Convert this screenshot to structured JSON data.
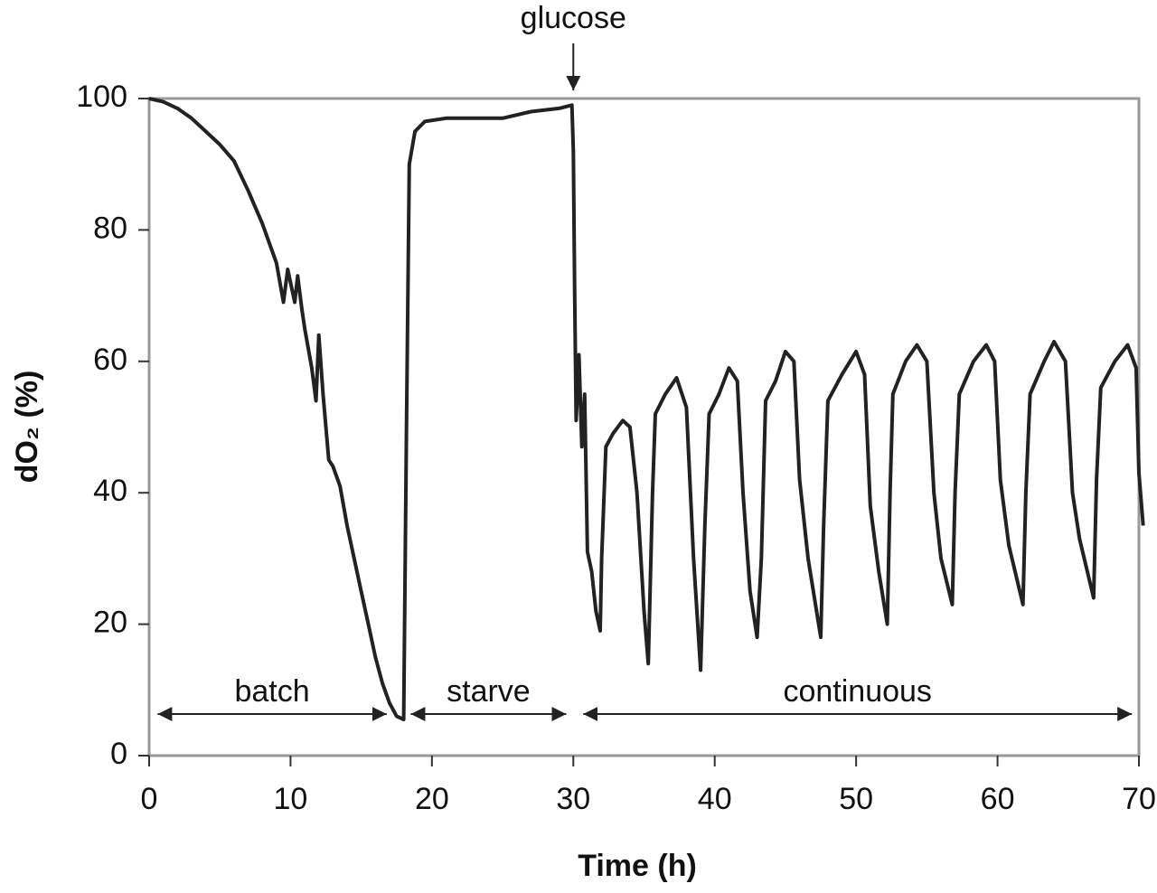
{
  "chart_data": {
    "type": "line",
    "x_label": "Time (h)",
    "y_label": "dO₂ (%)",
    "color": "#222222",
    "xlim": [
      0,
      70
    ],
    "ylim": [
      0,
      100
    ],
    "xticks": [
      0,
      10,
      20,
      30,
      40,
      50,
      60,
      70
    ],
    "yticks": [
      0,
      20,
      40,
      60,
      80,
      100
    ],
    "x": [
      0,
      1,
      2,
      3,
      4,
      5,
      6,
      7,
      8,
      9,
      9.5,
      9.8,
      10,
      10.3,
      10.5,
      10.8,
      11,
      11.5,
      11.8,
      12,
      12.3,
      12.7,
      13,
      13.5,
      14,
      14.5,
      15,
      15.5,
      16,
      16.5,
      17,
      17.5,
      18,
      18.2,
      18.4,
      18.8,
      19.5,
      21,
      23,
      25,
      27,
      29,
      29.9,
      30,
      30.1,
      30.2,
      30.4,
      30.6,
      30.8,
      31,
      31.3,
      31.6,
      31.9,
      32,
      32.3,
      32.8,
      33.5,
      34,
      34.5,
      35,
      35.3,
      35.6,
      35.8,
      36.5,
      37.3,
      38,
      38.5,
      38.8,
      39,
      39.3,
      39.6,
      40.3,
      41,
      41.6,
      42,
      42.5,
      43,
      43.3,
      43.6,
      44.3,
      45,
      45.6,
      46,
      46.6,
      47.5,
      47.7,
      48,
      49,
      50,
      50.6,
      51,
      51.6,
      52.2,
      52.4,
      52.6,
      53.5,
      54.3,
      55,
      55.5,
      56,
      56.8,
      57,
      57.3,
      58.3,
      59.2,
      59.8,
      60.2,
      60.8,
      61.8,
      62,
      62.3,
      63.3,
      64,
      64.8,
      65.3,
      65.8,
      66.8,
      67,
      67.3,
      68.3,
      69.2,
      69.8,
      70,
      70.3
    ],
    "values": [
      100,
      99.5,
      98.5,
      97,
      95,
      93,
      90.5,
      86,
      81,
      75,
      69,
      74,
      72,
      69,
      73,
      68,
      65,
      59,
      54,
      64,
      55,
      45,
      44,
      41,
      35,
      30,
      25,
      20,
      15,
      11,
      8,
      6,
      5.5,
      50,
      90,
      95,
      96.5,
      97,
      97,
      97,
      98,
      98.5,
      99,
      92,
      70,
      51,
      61,
      47,
      55,
      31,
      28,
      22,
      19,
      30,
      47,
      49,
      51,
      50,
      40,
      22,
      14,
      40,
      52,
      55,
      57.5,
      53,
      30,
      20,
      13,
      35,
      52,
      55,
      59,
      57,
      40,
      25,
      18,
      30,
      54,
      57,
      61.5,
      60,
      42,
      30,
      18,
      35,
      54,
      58,
      61.5,
      58,
      38,
      28,
      20,
      40,
      55,
      60,
      62.5,
      60,
      40,
      30,
      23,
      40,
      55,
      60,
      62.5,
      60,
      42,
      32,
      23,
      40,
      55,
      60,
      63,
      60,
      40,
      33,
      24,
      42,
      56,
      60,
      62.5,
      59,
      43,
      35
    ],
    "annotations": [
      {
        "text": "glucose",
        "x": 30
      },
      {
        "text": "batch",
        "start": 0.6,
        "end": 16.8
      },
      {
        "text": "starve",
        "start": 18.5,
        "end": 29.5
      },
      {
        "text": "continuous",
        "start": 30.7,
        "end": 69.5
      }
    ]
  }
}
